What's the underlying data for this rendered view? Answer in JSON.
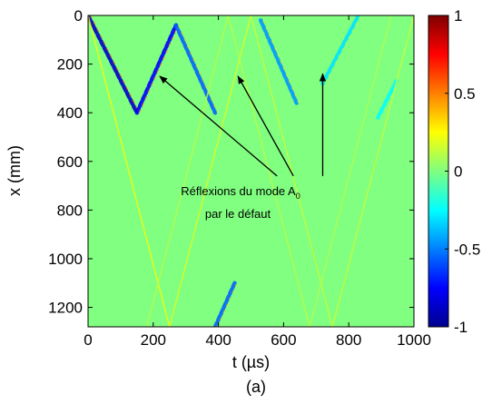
{
  "chart_data": {
    "type": "heatmap",
    "xlabel": "t (µs)",
    "ylabel": "x (mm)",
    "caption": "(a)",
    "xlim": [
      0,
      1000
    ],
    "ylim": [
      1280,
      0
    ],
    "y_axis_reversed": true,
    "x_ticks": [
      0,
      200,
      400,
      600,
      800,
      1000
    ],
    "x_tick_labels": [
      "0",
      "200",
      "400",
      "600",
      "800",
      "1000"
    ],
    "y_ticks": [
      0,
      200,
      400,
      600,
      800,
      1000,
      1200
    ],
    "y_tick_labels": [
      "0",
      "200",
      "400",
      "600",
      "800",
      "1000",
      "1200"
    ],
    "colorbar": {
      "range": [
        -1,
        1
      ],
      "ticks": [
        1,
        0.5,
        0,
        -0.5,
        -1
      ],
      "tick_labels": [
        "1",
        "0.5",
        "0",
        "-0.5",
        "-1"
      ],
      "colormap": "jet"
    },
    "background_value": 0,
    "wave_tracks": [
      {
        "kind": "A0 incident",
        "value": -0.85,
        "points": [
          [
            0,
            0
          ],
          [
            150,
            400
          ]
        ]
      },
      {
        "kind": "A0 reflection",
        "value": -0.75,
        "points": [
          [
            150,
            400
          ],
          [
            270,
            40
          ]
        ]
      },
      {
        "kind": "A0 reflection",
        "value": -0.55,
        "points": [
          [
            270,
            40
          ],
          [
            390,
            400
          ]
        ]
      },
      {
        "kind": "A0 reflection",
        "value": -0.45,
        "points": [
          [
            530,
            20
          ],
          [
            640,
            360
          ]
        ]
      },
      {
        "kind": "A0 reflection",
        "value": -0.3,
        "points": [
          [
            720,
            280
          ],
          [
            830,
            0
          ]
        ]
      },
      {
        "kind": "A0 reflection",
        "value": -0.25,
        "points": [
          [
            890,
            420
          ],
          [
            950,
            260
          ]
        ]
      },
      {
        "kind": "A0 bottom echo",
        "value": -0.55,
        "points": [
          [
            390,
            1280
          ],
          [
            450,
            1100
          ]
        ]
      },
      {
        "kind": "S0 front",
        "value": 0.25,
        "points": [
          [
            0,
            0
          ],
          [
            250,
            1280
          ]
        ]
      },
      {
        "kind": "S0 front",
        "value": 0.2,
        "points": [
          [
            250,
            1280
          ],
          [
            500,
            0
          ]
        ]
      },
      {
        "kind": "S0 front",
        "value": 0.15,
        "points": [
          [
            500,
            0
          ],
          [
            750,
            1280
          ]
        ]
      },
      {
        "kind": "S0 front",
        "value": 0.15,
        "points": [
          [
            750,
            1280
          ],
          [
            1000,
            0
          ]
        ]
      },
      {
        "kind": "S0 front",
        "value": 0.12,
        "points": [
          [
            180,
            1280
          ],
          [
            430,
            0
          ]
        ]
      },
      {
        "kind": "S0 front",
        "value": 0.12,
        "points": [
          [
            430,
            0
          ],
          [
            680,
            1280
          ]
        ]
      },
      {
        "kind": "S0 front",
        "value": 0.1,
        "points": [
          [
            680,
            1280
          ],
          [
            930,
            0
          ]
        ]
      }
    ],
    "annotation": {
      "text_line1": "Réflexions du mode A",
      "text_line1_subscript": "0",
      "text_line2": "par le défaut",
      "arrow_targets": [
        [
          220,
          250
        ],
        [
          460,
          250
        ],
        [
          720,
          240
        ]
      ],
      "arrow_origins": [
        [
          580,
          660
        ],
        [
          630,
          660
        ],
        [
          720,
          660
        ]
      ]
    }
  }
}
